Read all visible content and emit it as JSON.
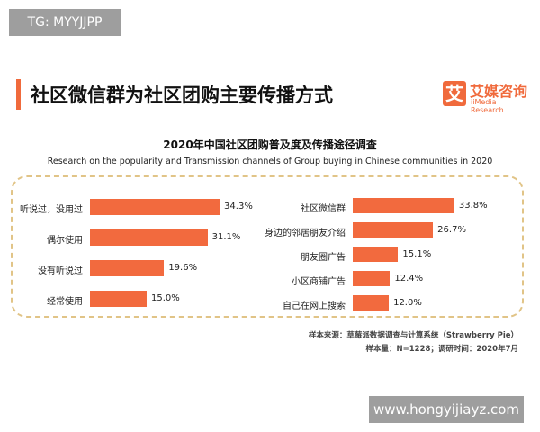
{
  "watermark_top": "TG: MYYJJPP",
  "watermark_bottom": "www.hongyijiayz.com",
  "header": {
    "title": "社区微信群为社区团购主要传播方式",
    "logo_cn": "艾媒咨询",
    "logo_en": "iiMedia Research",
    "logo_mark": "艾"
  },
  "chart_data": [
    {
      "type": "bar",
      "orientation": "horizontal",
      "title": "2020年中国社区团购普及度及传播途径调查",
      "subtitle": "Research on the popularity and Transmission channels of Group buying in Chinese communities in 2020",
      "unit": "%",
      "categories": [
        "听说过，没用过",
        "偶尔使用",
        "没有听说过",
        "经常使用"
      ],
      "values": [
        34.3,
        31.1,
        19.6,
        15.0
      ],
      "labels": [
        "34.3%",
        "31.1%",
        "19.6%",
        "15.0%"
      ],
      "color": "#f26a3e"
    },
    {
      "type": "bar",
      "orientation": "horizontal",
      "unit": "%",
      "categories": [
        "社区微信群",
        "身边的邻居朋友介绍",
        "朋友圈广告",
        "小区商铺广告",
        "自己在网上搜索"
      ],
      "values": [
        33.8,
        26.7,
        15.1,
        12.4,
        12.0
      ],
      "labels": [
        "33.8%",
        "26.7%",
        "15.1%",
        "12.4%",
        "12.0%"
      ],
      "color": "#f26a3e"
    }
  ],
  "footer": {
    "source": "样本来源：草莓派数据调查与计算系统（Strawberry Pie）",
    "sample": "样本量：N=1228；调研时间：2020年7月"
  }
}
